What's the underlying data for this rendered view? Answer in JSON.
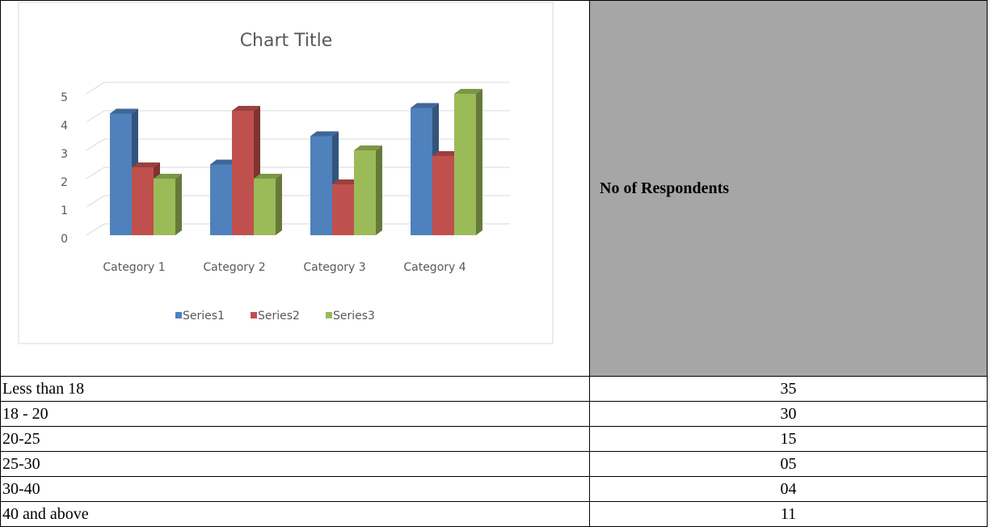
{
  "chart_data": {
    "type": "bar3d",
    "title": "Chart Title",
    "categories": [
      "Category 1",
      "Category 2",
      "Category 3",
      "Category 4"
    ],
    "series": [
      {
        "name": "Series1",
        "color": "#4f81bd",
        "values": [
          4.3,
          2.5,
          3.5,
          4.5
        ]
      },
      {
        "name": "Series2",
        "color": "#c0504d",
        "values": [
          2.4,
          4.4,
          1.8,
          2.8
        ]
      },
      {
        "name": "Series3",
        "color": "#9bbb59",
        "values": [
          2,
          2,
          3,
          5
        ]
      }
    ],
    "ylim": [
      0,
      5
    ],
    "yticks": [
      0,
      1,
      2,
      3,
      4,
      5
    ],
    "grid": true,
    "legend": "bottom"
  },
  "table": {
    "header": [
      "No of Respondents"
    ],
    "rows": [
      [
        "Less than 18",
        "35"
      ],
      [
        "18 - 20",
        "30"
      ],
      [
        "20-25",
        "15"
      ],
      [
        "25-30",
        "05"
      ],
      [
        "30-40",
        "04"
      ],
      [
        "40 and above",
        "11"
      ]
    ]
  }
}
